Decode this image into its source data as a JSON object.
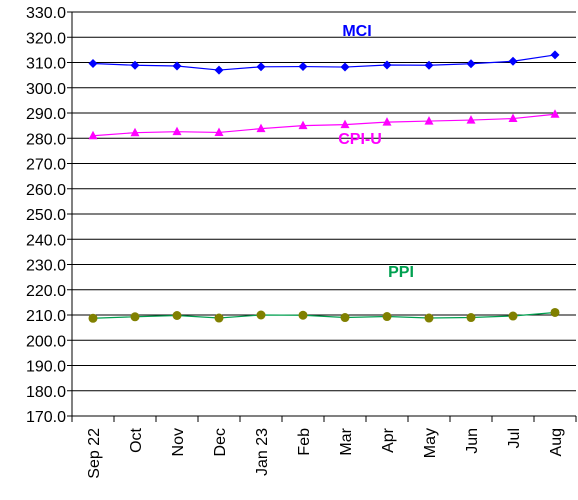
{
  "chart_data": {
    "type": "line",
    "title": "",
    "xlabel": "",
    "ylabel": "",
    "ylim": [
      170,
      330
    ],
    "y_ticks": [
      "170.0",
      "180.0",
      "190.0",
      "200.0",
      "210.0",
      "220.0",
      "230.0",
      "240.0",
      "250.0",
      "260.0",
      "270.0",
      "280.0",
      "290.0",
      "300.0",
      "310.0",
      "320.0",
      "330.0"
    ],
    "grid": "horizontal",
    "categories": [
      "Sep 22",
      "Oct",
      "Nov",
      "Dec",
      "Jan 23",
      "Feb",
      "Mar",
      "Apr",
      "May",
      "Jun",
      "Jul",
      "Aug"
    ],
    "series": [
      {
        "name": "MCI",
        "color": "#0000ff",
        "marker": "diamond",
        "values": [
          309.6,
          308.9,
          308.6,
          307.0,
          308.3,
          308.4,
          308.2,
          309.0,
          308.9,
          309.5,
          310.5,
          313.0
        ]
      },
      {
        "name": "CPI-U",
        "color": "#ff00ff",
        "marker": "triangle",
        "values": [
          281.0,
          282.2,
          282.6,
          282.3,
          283.8,
          285.0,
          285.4,
          286.4,
          286.8,
          287.2,
          287.8,
          289.5
        ]
      },
      {
        "name": "PPI",
        "color": "#00a050",
        "marker": "circle",
        "marker_color": "#808000",
        "values": [
          208.7,
          209.3,
          209.8,
          208.8,
          210.0,
          209.9,
          209.0,
          209.4,
          208.8,
          209.0,
          209.6,
          211.0
        ]
      }
    ]
  }
}
